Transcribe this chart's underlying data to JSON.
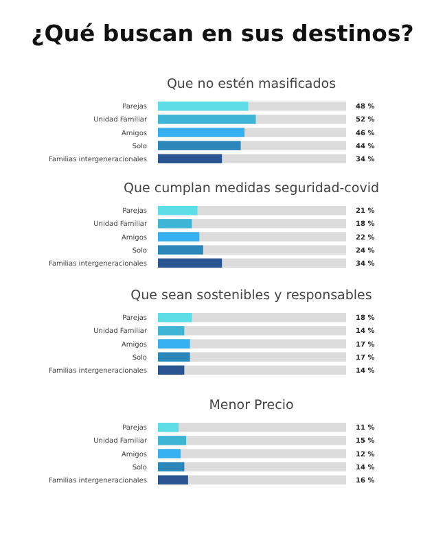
{
  "chart_data": [
    {
      "type": "bar",
      "orientation": "horizontal",
      "title": "¿Qué buscan en sus destinos?",
      "subtitle": "Que no estén masificados",
      "categories": [
        "Parejas",
        "Unidad Familiar",
        "Amigos",
        "Solo",
        "Familias intergeneracionales"
      ],
      "values": [
        48,
        52,
        46,
        44,
        34
      ],
      "value_labels": [
        "48 %",
        "52 %",
        "46 %",
        "44 %",
        "34 %"
      ],
      "colors": [
        "#5ddde6",
        "#3fb5d6",
        "#36b0f0",
        "#2b86b9",
        "#2b5591"
      ],
      "xlim": [
        0,
        100
      ]
    },
    {
      "type": "bar",
      "orientation": "horizontal",
      "title": "Que cumplan medidas seguridad-covid",
      "categories": [
        "Parejas",
        "Unidad Familiar",
        "Amigos",
        "Solo",
        "Familias intergeneracionales"
      ],
      "values": [
        21,
        18,
        22,
        24,
        34
      ],
      "value_labels": [
        "21 %",
        "18 %",
        "22 %",
        "24 %",
        "34 %"
      ],
      "colors": [
        "#5ddde6",
        "#3fb5d6",
        "#36b0f0",
        "#2b86b9",
        "#2b5591"
      ],
      "xlim": [
        0,
        100
      ]
    },
    {
      "type": "bar",
      "orientation": "horizontal",
      "title": "Que sean sostenibles y responsables",
      "categories": [
        "Parejas",
        "Unidad Familiar",
        "Amigos",
        "Solo",
        "Familias intergeneracionales"
      ],
      "values": [
        18,
        14,
        17,
        17,
        14
      ],
      "value_labels": [
        "18 %",
        "14 %",
        "17 %",
        "17 %",
        "14 %"
      ],
      "colors": [
        "#5ddde6",
        "#3fb5d6",
        "#36b0f0",
        "#2b86b9",
        "#2b5591"
      ],
      "xlim": [
        0,
        100
      ]
    },
    {
      "type": "bar",
      "orientation": "horizontal",
      "title": "Menor Precio",
      "categories": [
        "Parejas",
        "Unidad Familiar",
        "Amigos",
        "Solo",
        "Familias intergeneracionales"
      ],
      "values": [
        11,
        15,
        12,
        14,
        16
      ],
      "value_labels": [
        "11 %",
        "15 %",
        "12 %",
        "14 %",
        "16 %"
      ],
      "colors": [
        "#5ddde6",
        "#3fb5d6",
        "#36b0f0",
        "#2b86b9",
        "#2b5591"
      ],
      "xlim": [
        0,
        100
      ]
    }
  ]
}
